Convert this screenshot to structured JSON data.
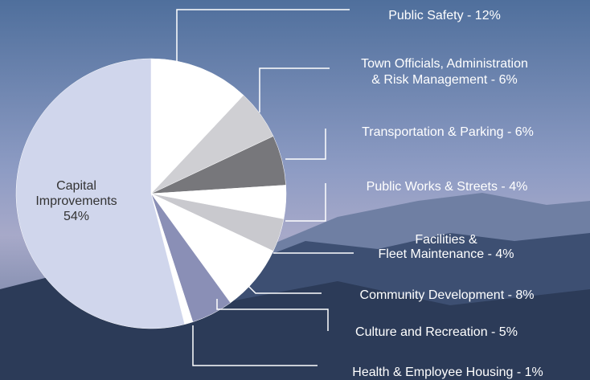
{
  "chart_data": {
    "type": "pie",
    "labels": [
      [
        "Public Safety - 12%"
      ],
      [
        "Town Officials, Administration",
        "& Risk Management - 6%"
      ],
      [
        "Transportation & Parking - 6%"
      ],
      [
        "Public Works & Streets - 4%"
      ],
      [
        "Facilities &",
        "Fleet Maintenance - 4%"
      ],
      [
        "Community Development - 8%"
      ],
      [
        "Culture and Recreation - 5%"
      ],
      [
        "Health & Employee Housing - 1%"
      ],
      [
        "Capital",
        "Improvements",
        "54%"
      ]
    ],
    "values": [
      12,
      6,
      6,
      4,
      4,
      8,
      5,
      1,
      54
    ],
    "colors": [
      "#ffffff",
      "#cfcfd3",
      "#77777b",
      "#ffffff",
      "#c9c9ce",
      "#ffffff",
      "#8a8fb6",
      "#ffffff",
      "#d0d6ec"
    ]
  }
}
